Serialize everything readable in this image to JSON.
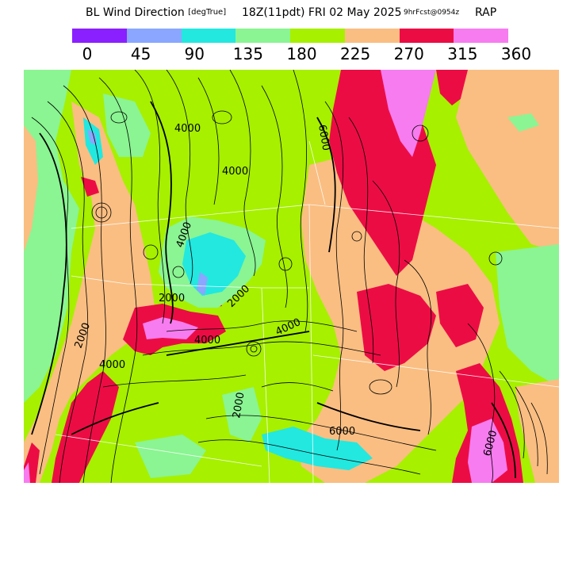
{
  "header": {
    "title": "BL Wind Direction",
    "unit": "[degTrue]",
    "valid": "18Z(11pdt) FRI 02 May 2025",
    "forecast": "9hrFcst@0954z",
    "model": "RAP"
  },
  "colorbar": {
    "ticks": [
      "0",
      "45",
      "90",
      "135",
      "180",
      "225",
      "270",
      "315",
      "360"
    ],
    "bins": [
      {
        "from": 0,
        "to": 45,
        "color": "#8a1fff"
      },
      {
        "from": 45,
        "to": 90,
        "color": "#8aa6ff"
      },
      {
        "from": 90,
        "to": 135,
        "color": "#22e8e0"
      },
      {
        "from": 135,
        "to": 180,
        "color": "#8af592"
      },
      {
        "from": 180,
        "to": 225,
        "color": "#a6f000"
      },
      {
        "from": 225,
        "to": 270,
        "color": "#fabe82"
      },
      {
        "from": 270,
        "to": 315,
        "color": "#ec0c44"
      },
      {
        "from": 315,
        "to": 360,
        "color": "#f77cf0"
      }
    ]
  },
  "map": {
    "contour_labels": [
      "4000",
      "4000",
      "2000",
      "4000",
      "2000",
      "4000",
      "2000",
      "4000",
      "2000",
      "4000",
      "6000",
      "6000",
      "6000"
    ]
  }
}
